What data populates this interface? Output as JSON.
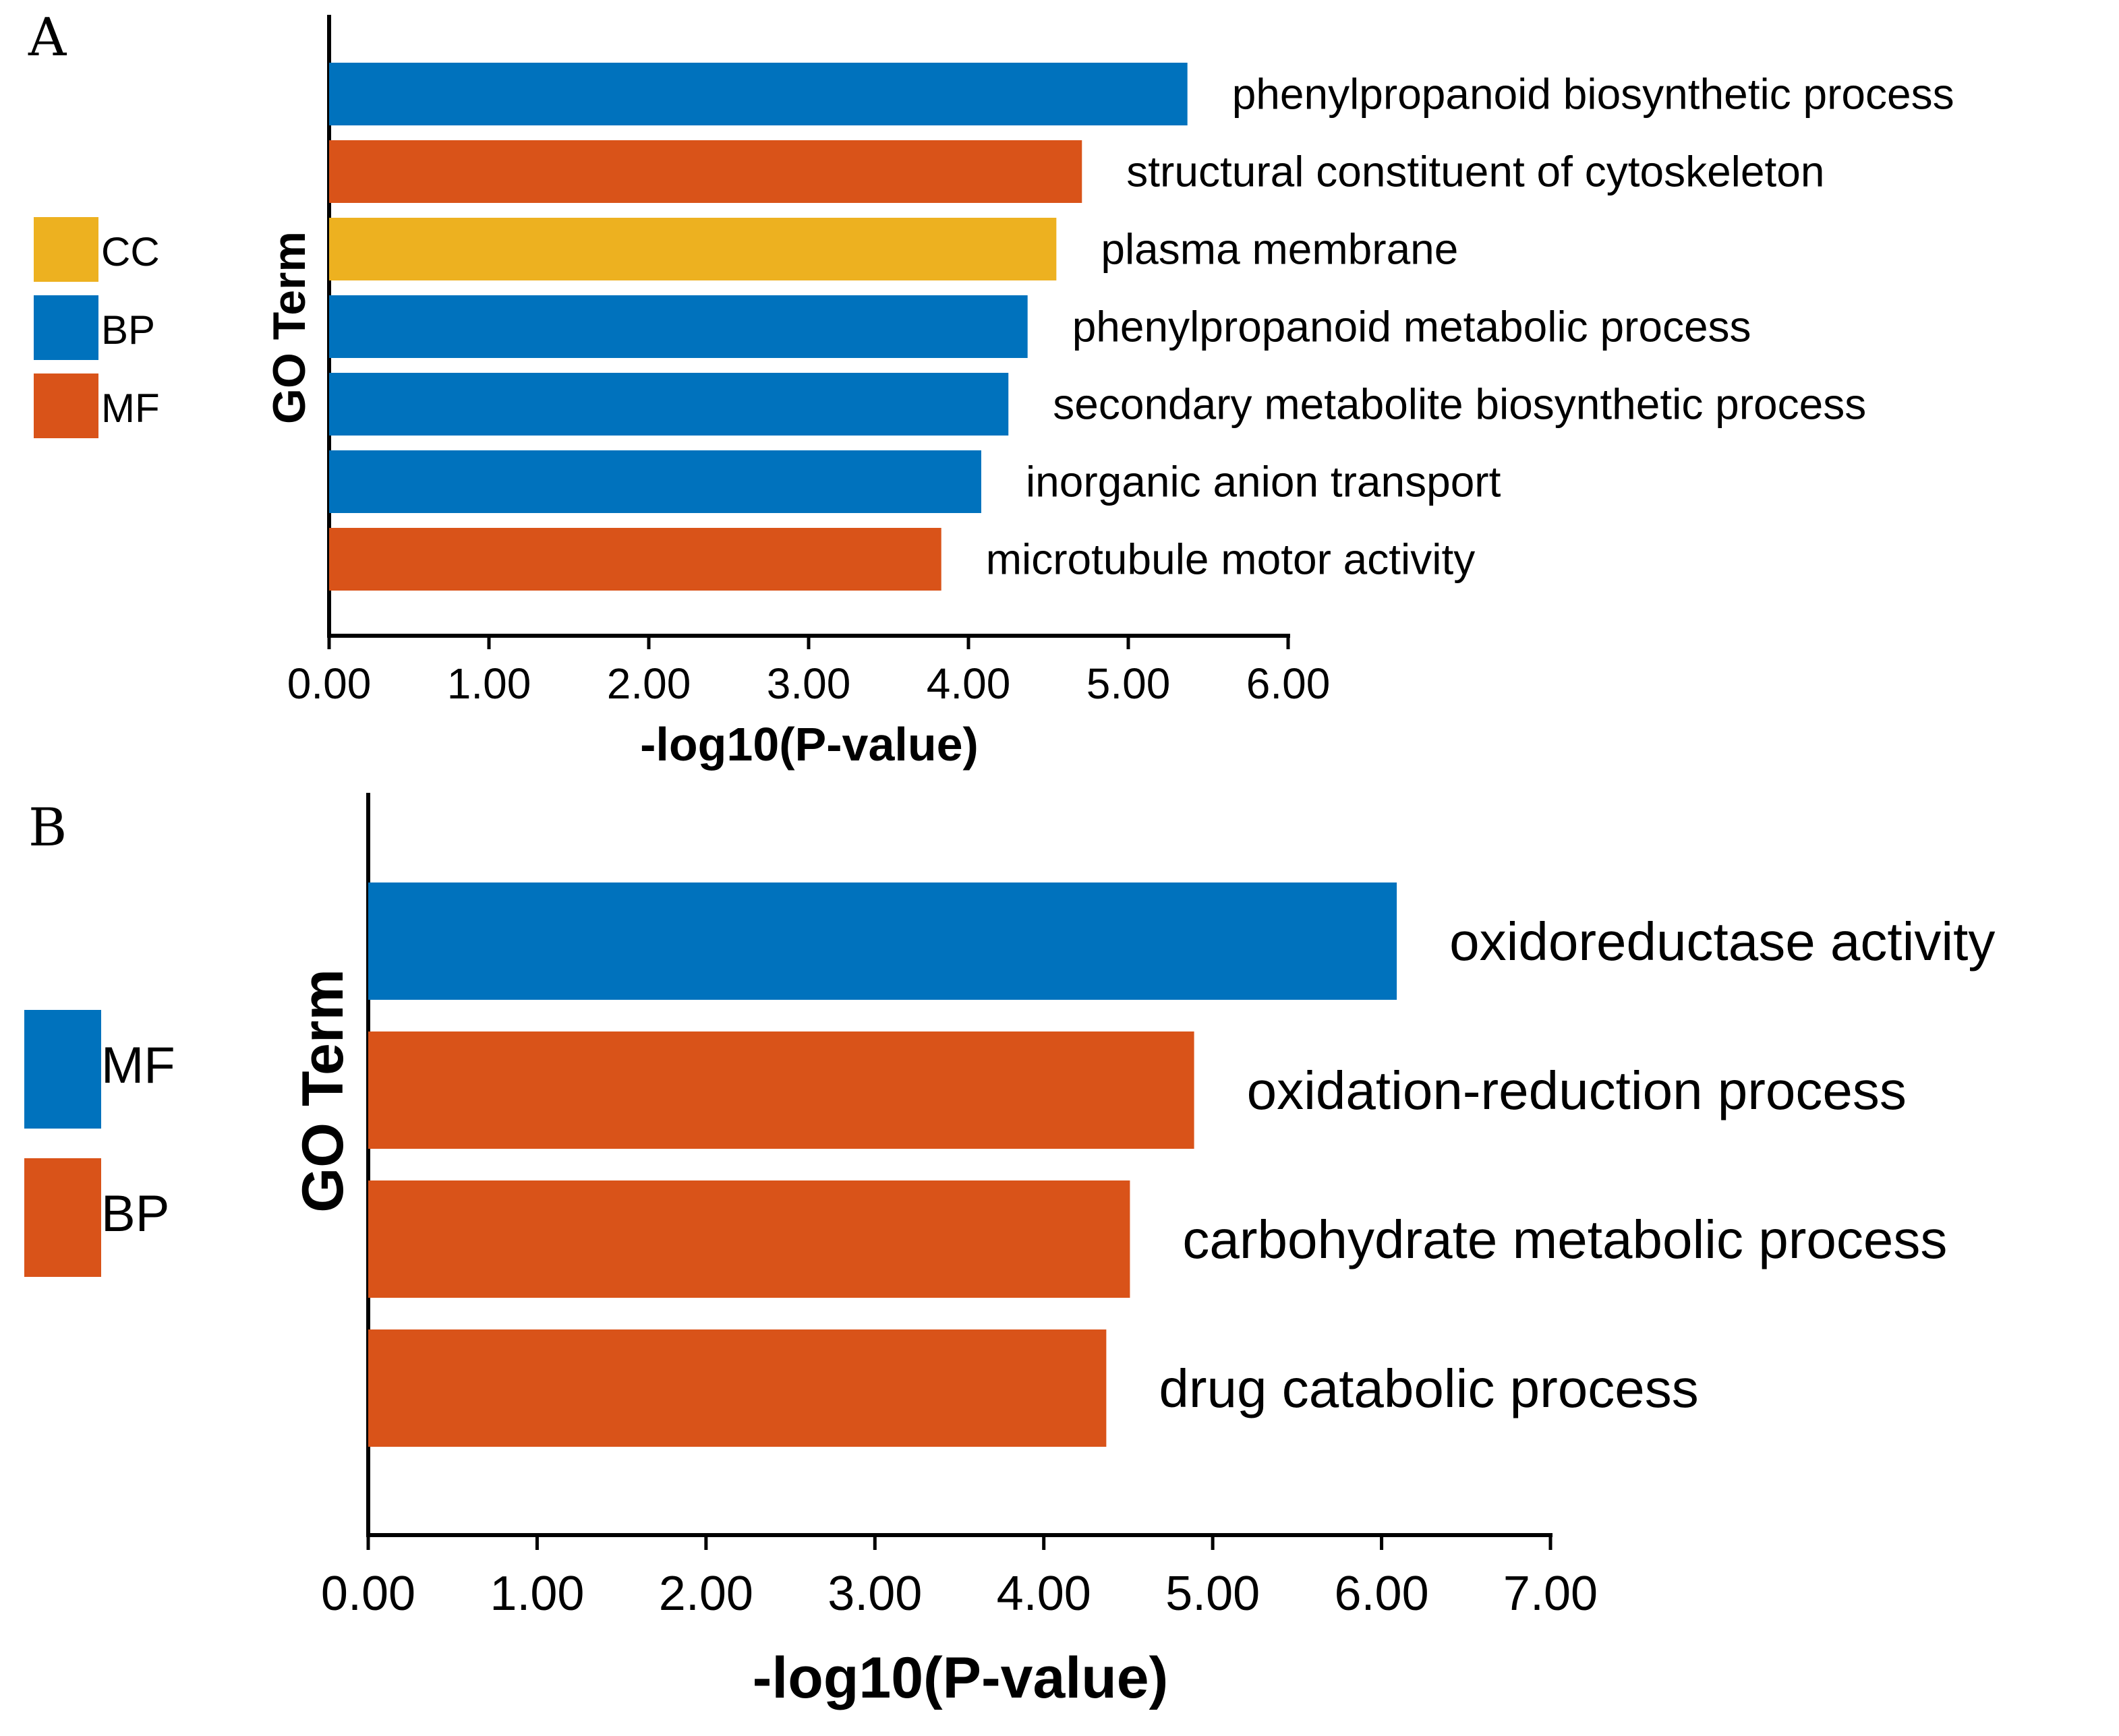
{
  "chart_data": [
    {
      "panel": "A",
      "type": "bar",
      "orientation": "horizontal",
      "ylabel": "GO Term",
      "xlabel": "-log10(P-value)",
      "xlim": [
        0,
        6
      ],
      "xticks": [
        "0.00",
        "1.00",
        "2.00",
        "3.00",
        "4.00",
        "5.00",
        "6.00"
      ],
      "legend": [
        {
          "label": "CC",
          "color": "#EDB120"
        },
        {
          "label": "BP",
          "color": "#0072BD"
        },
        {
          "label": "MF",
          "color": "#D95319"
        }
      ],
      "bars": [
        {
          "label": "phenylpropanoid biosynthetic process",
          "value": 5.37,
          "category": "BP",
          "color": "#0072BD"
        },
        {
          "label": "structural constituent of cytoskeleton",
          "value": 4.71,
          "category": "MF",
          "color": "#D95319"
        },
        {
          "label": "plasma membrane",
          "value": 4.55,
          "category": "CC",
          "color": "#EDB120"
        },
        {
          "label": "phenylpropanoid metabolic process",
          "value": 4.37,
          "category": "BP",
          "color": "#0072BD"
        },
        {
          "label": "secondary metabolite biosynthetic process",
          "value": 4.25,
          "category": "BP",
          "color": "#0072BD"
        },
        {
          "label": "inorganic anion transport",
          "value": 4.08,
          "category": "BP",
          "color": "#0072BD"
        },
        {
          "label": "microtubule motor activity",
          "value": 3.83,
          "category": "MF",
          "color": "#D95319"
        }
      ]
    },
    {
      "panel": "B",
      "type": "bar",
      "orientation": "horizontal",
      "ylabel": "GO Term",
      "xlabel": "-log10(P-value)",
      "xlim": [
        0,
        7
      ],
      "xticks": [
        "0.00",
        "1.00",
        "2.00",
        "3.00",
        "4.00",
        "5.00",
        "6.00",
        "7.00"
      ],
      "legend": [
        {
          "label": "MF",
          "color": "#0072BD"
        },
        {
          "label": "BP",
          "color": "#D95319"
        }
      ],
      "bars": [
        {
          "label": "oxidoreductase activity",
          "value": 6.09,
          "category": "MF",
          "color": "#0072BD"
        },
        {
          "label": "oxidation-reduction process",
          "value": 4.89,
          "category": "BP",
          "color": "#D95319"
        },
        {
          "label": "carbohydrate metabolic process",
          "value": 4.51,
          "category": "BP",
          "color": "#D95319"
        },
        {
          "label": "drug catabolic process",
          "value": 4.37,
          "category": "BP",
          "color": "#D95319"
        }
      ]
    }
  ]
}
